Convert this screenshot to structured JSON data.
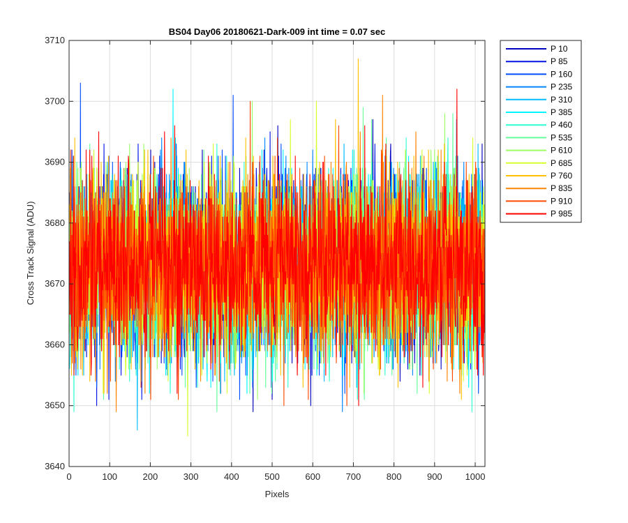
{
  "chart_data": {
    "type": "line",
    "title": "BS04 Day06 20180621-Dark-009 int time = 0.07 sec",
    "xlabel": "Pixels",
    "ylabel": "Cross Track Signal (ADU)",
    "xlim": [
      0,
      1024
    ],
    "ylim": [
      3640,
      3710
    ],
    "xticks": [
      0,
      100,
      200,
      300,
      400,
      500,
      600,
      700,
      800,
      900,
      1000
    ],
    "yticks": [
      3640,
      3650,
      3660,
      3670,
      3680,
      3690,
      3700,
      3710
    ],
    "grid": true,
    "legend_position": "outside-top-right",
    "noise_model": {
      "center": 3673,
      "std": 7.3,
      "min": 3645,
      "max": 3707,
      "points_per_series": 1024
    },
    "series": [
      {
        "name": "P 10",
        "color": "#0000bf"
      },
      {
        "name": "P 85",
        "color": "#0014e6"
      },
      {
        "name": "P 160",
        "color": "#004cff"
      },
      {
        "name": "P 235",
        "color": "#0084ff"
      },
      {
        "name": "P 310",
        "color": "#00bcff"
      },
      {
        "name": "P 385",
        "color": "#00f4ff"
      },
      {
        "name": "P 460",
        "color": "#2cffd3"
      },
      {
        "name": "P 535",
        "color": "#64ff9b"
      },
      {
        "name": "P 610",
        "color": "#9cff63"
      },
      {
        "name": "P 685",
        "color": "#d4ff2b"
      },
      {
        "name": "P 760",
        "color": "#ffc000"
      },
      {
        "name": "P 835",
        "color": "#ff8400"
      },
      {
        "name": "P 910",
        "color": "#ff4800"
      },
      {
        "name": "P 985",
        "color": "#ff0000"
      }
    ],
    "annotated_peaks": [
      {
        "series": "P 760",
        "x": 712,
        "y": 3707
      },
      {
        "series": "P 385",
        "x": 256,
        "y": 3702
      },
      {
        "series": "P 160",
        "x": 404,
        "y": 3701
      },
      {
        "series": "P 835",
        "x": 772,
        "y": 3701
      },
      {
        "series": "P 685",
        "x": 292,
        "y": 3645
      },
      {
        "series": "P 310",
        "x": 168,
        "y": 3646
      }
    ]
  }
}
